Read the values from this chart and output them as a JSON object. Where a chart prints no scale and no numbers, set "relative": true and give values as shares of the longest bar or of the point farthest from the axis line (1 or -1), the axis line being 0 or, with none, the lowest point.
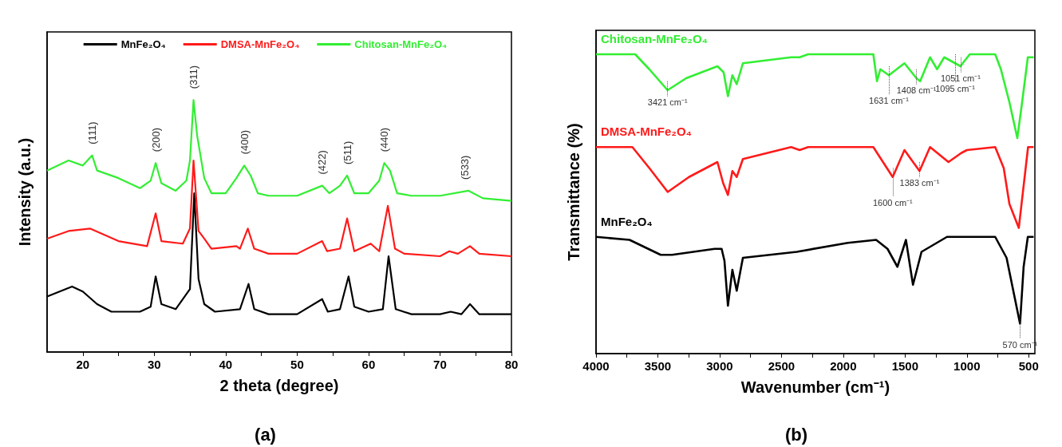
{
  "chart_data": [
    {
      "type": "line",
      "title": "(a)",
      "xlabel": "2 theta (degree)",
      "ylabel": "Intensity (a.u.)",
      "relative": true,
      "legend": "top",
      "xlim": [
        15,
        80
      ],
      "xticks": [
        20,
        {
          "value": 25,
          "label": null
        },
        30,
        {
          "value": 35,
          "label": null
        },
        40,
        {
          "value": 45,
          "label": null
        },
        50,
        {
          "value": 55,
          "label": null
        },
        60,
        {
          "value": 65,
          "label": null
        },
        70,
        {
          "value": 75,
          "label": null
        },
        80
      ],
      "series": [
        {
          "name": "MnFe₂O₄",
          "color": "#000000",
          "x": [
            15,
            18.5,
            20,
            22,
            24,
            28,
            29.5,
            30.2,
            31,
            33,
            35,
            35.6,
            36.2,
            37,
            38.5,
            42,
            43.2,
            44,
            46,
            50,
            53.5,
            54.3,
            56,
            57.2,
            58,
            60,
            62,
            62.8,
            63.8,
            66,
            70,
            71.5,
            73,
            74.2,
            75.5,
            80
          ],
          "values": [
            0.22,
            0.26,
            0.24,
            0.19,
            0.16,
            0.16,
            0.18,
            0.3,
            0.19,
            0.17,
            0.25,
            0.63,
            0.29,
            0.19,
            0.16,
            0.17,
            0.27,
            0.17,
            0.15,
            0.15,
            0.21,
            0.16,
            0.17,
            0.3,
            0.18,
            0.16,
            0.17,
            0.38,
            0.17,
            0.15,
            0.15,
            0.16,
            0.15,
            0.19,
            0.15,
            0.15
          ]
        },
        {
          "name": "DMSA-MnFe₂O₄",
          "color": "#ff1a1a",
          "x": [
            15,
            18,
            21,
            25,
            29,
            30.2,
            31,
            34,
            35,
            35.5,
            36.2,
            37,
            38,
            41.5,
            42,
            43.1,
            44,
            46,
            50,
            53.5,
            54.2,
            56,
            57,
            58,
            60.3,
            61.5,
            62.7,
            63.7,
            65,
            70,
            71.3,
            72.5,
            74.2,
            75.5,
            80
          ],
          "values": [
            0.45,
            0.48,
            0.49,
            0.44,
            0.42,
            0.55,
            0.44,
            0.43,
            0.49,
            0.76,
            0.48,
            0.45,
            0.41,
            0.42,
            0.41,
            0.49,
            0.41,
            0.39,
            0.39,
            0.44,
            0.4,
            0.41,
            0.53,
            0.4,
            0.43,
            0.4,
            0.58,
            0.41,
            0.39,
            0.38,
            0.4,
            0.39,
            0.42,
            0.39,
            0.38
          ]
        },
        {
          "name": "Chitosan-MnFe₂O₄",
          "color": "#33ee33",
          "x": [
            15,
            18,
            20,
            21.3,
            22,
            25,
            28,
            29.5,
            30.2,
            31,
            33,
            34.5,
            35,
            35.5,
            36,
            37,
            38,
            40,
            41.5,
            42.6,
            43.5,
            44.5,
            46,
            50,
            53.5,
            54.5,
            56,
            57,
            58,
            60,
            61.5,
            62.2,
            63,
            64,
            66,
            70,
            74,
            76,
            80
          ],
          "values": [
            0.72,
            0.76,
            0.74,
            0.78,
            0.72,
            0.69,
            0.65,
            0.68,
            0.75,
            0.67,
            0.64,
            0.68,
            0.76,
            1,
            0.86,
            0.69,
            0.63,
            0.63,
            0.69,
            0.74,
            0.7,
            0.63,
            0.62,
            0.62,
            0.66,
            0.63,
            0.66,
            0.7,
            0.63,
            0.63,
            0.68,
            0.75,
            0.72,
            0.63,
            0.62,
            0.62,
            0.64,
            0.61,
            0.6
          ]
        }
      ],
      "annotations": [
        {
          "text": "(111)",
          "x": 21.3,
          "y": 0.78
        },
        {
          "text": "(200)",
          "x": 30.2,
          "y": 0.75
        },
        {
          "text": "(311)",
          "x": 35.5,
          "y": 1
        },
        {
          "text": "(400)",
          "x": 42.6,
          "y": 0.74
        },
        {
          "text": "(422)",
          "x": 53.5,
          "y": 0.66
        },
        {
          "text": "(511)",
          "x": 57,
          "y": 0.7
        },
        {
          "text": "(440)",
          "x": 62.2,
          "y": 0.75
        },
        {
          "text": "(533)",
          "x": 73.5,
          "y": 0.64
        }
      ]
    },
    {
      "type": "line",
      "title": "(b)",
      "xlabel": "Wavenumber (cm⁻¹)",
      "ylabel": "Transmittance (%)",
      "relative": true,
      "xlim": [
        4000,
        450
      ],
      "xticks": [
        4000,
        {
          "value": 3750,
          "label": null
        },
        3500,
        {
          "value": 3250,
          "label": null
        },
        3000,
        {
          "value": 2750,
          "label": null
        },
        2500,
        {
          "value": 2250,
          "label": null
        },
        2000,
        {
          "value": 1750,
          "label": null
        },
        1500,
        {
          "value": 1250,
          "label": null
        },
        1000,
        {
          "value": 750,
          "label": null
        },
        500
      ],
      "series": [
        {
          "name": "MnFe₂O₄",
          "color": "#000000",
          "x": [
            4000,
            3729,
            3477,
            3385,
            3041,
            2984,
            2961,
            2933,
            2897,
            2862,
            2812,
            2376,
            1963,
            1734,
            1642,
            1562,
            1493,
            1436,
            1367,
            1161,
            771,
            679,
            570,
            541,
            507,
            460
          ],
          "values": [
            0.39,
            0.38,
            0.33,
            0.33,
            0.35,
            0.35,
            0.31,
            0.16,
            0.28,
            0.21,
            0.32,
            0.34,
            0.37,
            0.38,
            0.35,
            0.29,
            0.38,
            0.23,
            0.34,
            0.39,
            0.39,
            0.32,
            0.1,
            0.29,
            0.39,
            0.39
          ]
        },
        {
          "name": "DMSA-MnFe₂O₄",
          "color": "#ff1a1a",
          "x": [
            4000,
            3706,
            3569,
            3420,
            3248,
            3018,
            2972,
            2933,
            2897,
            2862,
            2812,
            2422,
            2353,
            2284,
            1757,
            1600,
            1505,
            1383,
            1298,
            1149,
            1046,
            1000,
            771,
            702,
            656,
            580,
            530,
            505,
            460
          ],
          "values": [
            0.69,
            0.69,
            0.62,
            0.54,
            0.59,
            0.64,
            0.57,
            0.53,
            0.61,
            0.59,
            0.65,
            0.69,
            0.68,
            0.69,
            0.69,
            0.59,
            0.68,
            0.61,
            0.69,
            0.64,
            0.67,
            0.68,
            0.69,
            0.62,
            0.5,
            0.42,
            0.6,
            0.69,
            0.69
          ]
        },
        {
          "name": "Chitosan-MnFe₂O₄",
          "color": "#33ee33",
          "x": [
            4000,
            3683,
            3569,
            3421,
            3271,
            3018,
            2968,
            2933,
            2897,
            2862,
            2812,
            2422,
            2353,
            2284,
            1757,
            1727,
            1700,
            1631,
            1505,
            1408,
            1378,
            1298,
            1241,
            1183,
            1095,
            1051,
            1034,
            977,
            771,
            725,
            656,
            592,
            553,
            507,
            460
          ],
          "values": [
            1,
            1,
            0.95,
            0.88,
            0.92,
            0.96,
            0.94,
            0.86,
            0.93,
            0.9,
            0.97,
            0.99,
            0.99,
            1,
            1,
            0.91,
            0.95,
            0.93,
            0.97,
            0.92,
            0.91,
            0.99,
            0.95,
            0.99,
            0.97,
            0.96,
            0.97,
            1,
            1,
            0.95,
            0.84,
            0.72,
            0.84,
            0.99,
            0.99
          ]
        }
      ],
      "annotations": [
        {
          "text": "3421 cm⁻¹",
          "x": 3421,
          "y": 0.88
        },
        {
          "text": "1631 cm⁻¹",
          "x": 1631,
          "y": 0.93
        },
        {
          "text": "1408 cm⁻¹",
          "x": 1408,
          "y": 0.92
        },
        {
          "text": "1095 cm⁻¹",
          "x": 1095,
          "y": 0.97
        },
        {
          "text": "1051 cm⁻¹",
          "x": 1051,
          "y": 0.96
        },
        {
          "text": "1600 cm⁻¹",
          "x": 1600,
          "y": 0.59
        },
        {
          "text": "1383 cm⁻¹",
          "x": 1383,
          "y": 0.61
        },
        {
          "text": "570 cm⁻¹",
          "x": 570,
          "y": 0.1
        }
      ]
    }
  ]
}
